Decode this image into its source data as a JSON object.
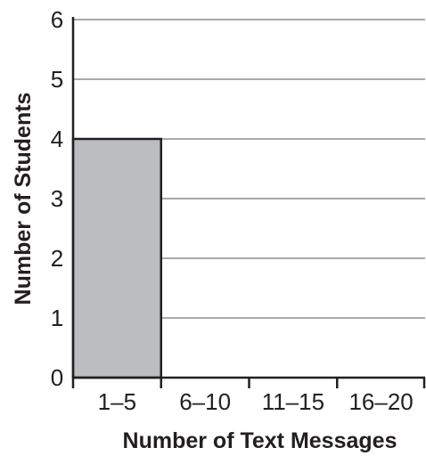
{
  "chart_data": {
    "type": "bar",
    "title": "",
    "xlabel": "Number of Text Messages",
    "ylabel": "Number of Students",
    "categories": [
      "1–5",
      "6–10",
      "11–15",
      "16–20"
    ],
    "values": [
      4,
      0,
      0,
      0
    ],
    "ylim": [
      0,
      6
    ],
    "yticks": [
      "0",
      "1",
      "2",
      "3",
      "4",
      "5",
      "6"
    ],
    "grid": true,
    "bar_color": "#bcbdc0",
    "line_color": "#231f20",
    "grid_color": "#a7a9ac"
  }
}
